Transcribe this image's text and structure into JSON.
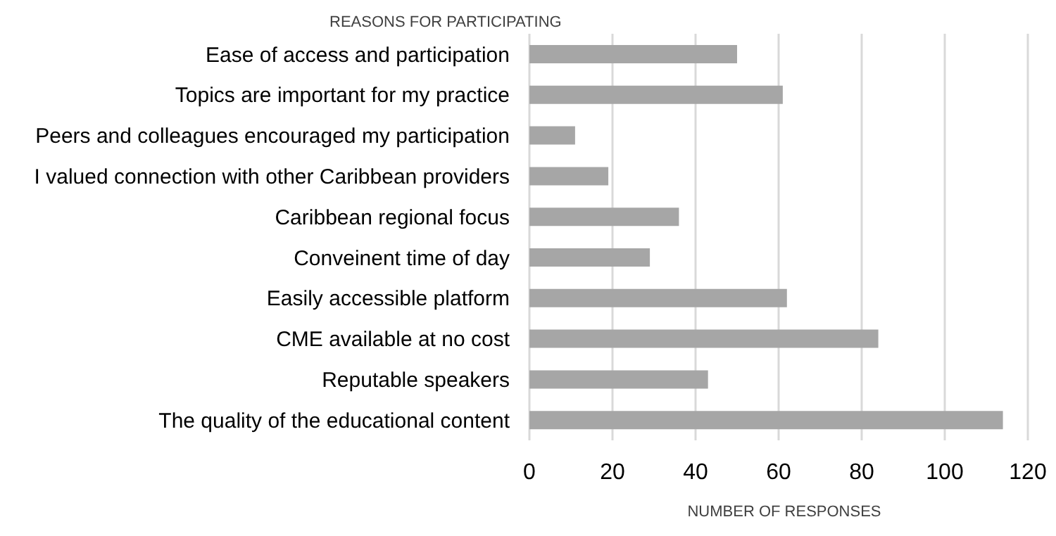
{
  "chart_data": {
    "type": "bar",
    "orientation": "horizontal",
    "ylabel": "REASONS FOR PARTICIPATING",
    "xlabel": "NUMBER OF RESPONSES",
    "categories": [
      "Ease of access and participation",
      "Topics are important for my practice",
      "Peers and colleagues encouraged my participation",
      "I valued connection with other Caribbean providers",
      "Caribbean regional focus",
      "Conveinent time of day",
      "Easily accessible platform",
      "CME available at no cost",
      "Reputable speakers",
      "The quality of the educational content"
    ],
    "values": [
      50,
      61,
      11,
      19,
      36,
      29,
      62,
      84,
      43,
      114
    ],
    "color": "#a6a6a6",
    "xlim": [
      0,
      120
    ],
    "xticks": [
      0,
      20,
      40,
      60,
      80,
      100,
      120
    ],
    "grid": "x"
  }
}
